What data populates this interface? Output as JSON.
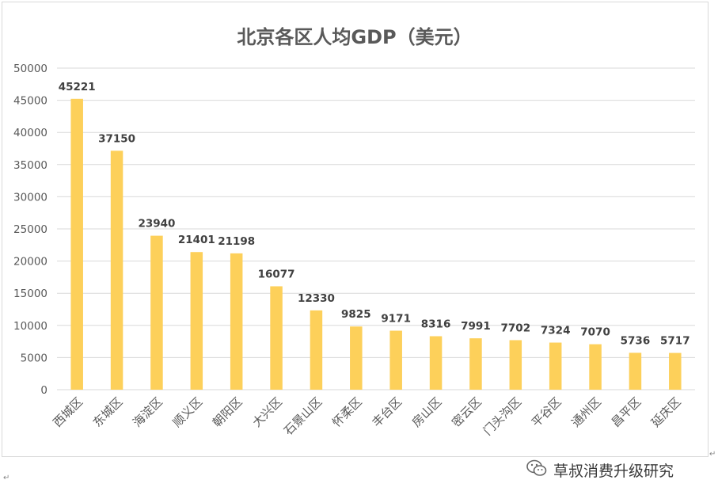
{
  "chart_data": {
    "type": "bar",
    "title": "北京各区人均GDP（美元）",
    "categories": [
      "西城区",
      "东城区",
      "海淀区",
      "顺义区",
      "朝阳区",
      "大兴区",
      "石景山区",
      "怀柔区",
      "丰台区",
      "房山区",
      "密云区",
      "门头沟区",
      "平谷区",
      "通州区",
      "昌平区",
      "延庆区"
    ],
    "values": [
      45221,
      37150,
      23940,
      21401,
      21198,
      16077,
      12330,
      9825,
      9171,
      8316,
      7991,
      7702,
      7324,
      7070,
      5736,
      5717
    ],
    "ylim": [
      0,
      50000
    ],
    "yticks": [
      0,
      5000,
      10000,
      15000,
      20000,
      25000,
      30000,
      35000,
      40000,
      45000,
      50000
    ],
    "xlabel": "",
    "ylabel": "",
    "bar_color": "#FDD05A",
    "grid": true,
    "data_labels": true
  },
  "watermark": {
    "text": "草叔消费升级研究",
    "icon": "wechat-icon"
  },
  "paragraph_mark": "↵"
}
